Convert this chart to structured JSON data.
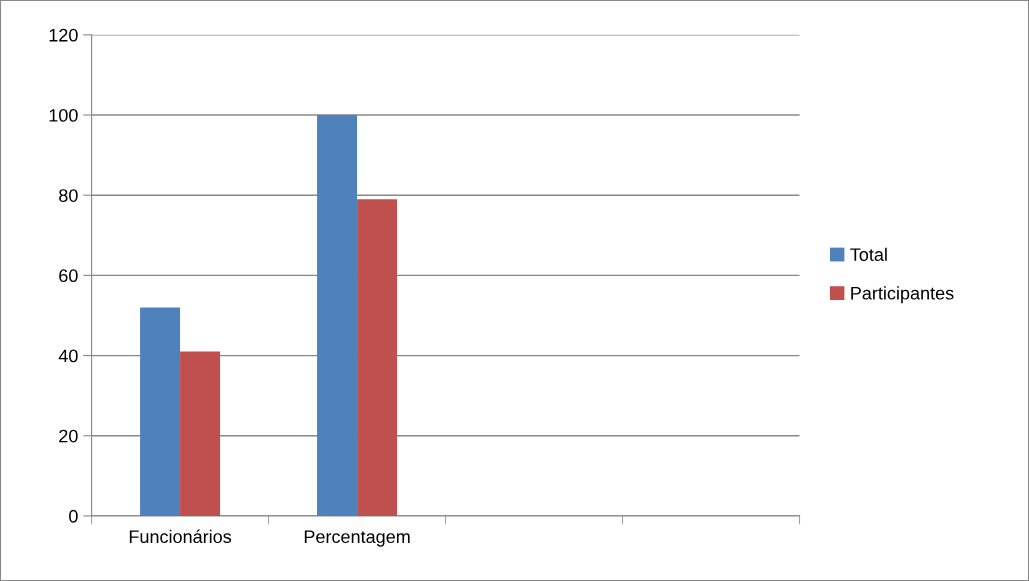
{
  "chart_data": {
    "type": "bar",
    "categories": [
      "Funcionários",
      "Percentagem",
      null,
      null
    ],
    "series": [
      {
        "name": "Total",
        "color": "#4f81bd",
        "values": [
          52,
          100,
          null,
          null
        ]
      },
      {
        "name": "Participantes",
        "color": "#c0504d",
        "values": [
          41,
          79,
          null,
          null
        ]
      }
    ],
    "ylim": [
      0,
      120
    ],
    "yticks": [
      0,
      20,
      40,
      60,
      80,
      100,
      120
    ],
    "grid": "y",
    "legend": "right"
  }
}
